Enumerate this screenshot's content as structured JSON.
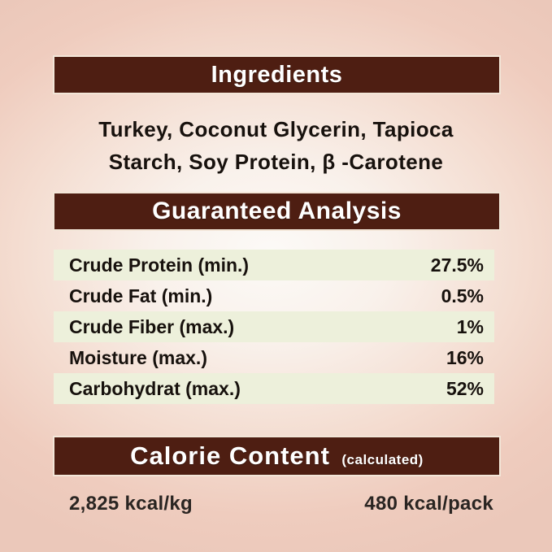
{
  "label": {
    "accent_color": "#4e1e12",
    "stripe_color": "#edf0db",
    "background_edge_color": "#ebc8ba"
  },
  "ingredients": {
    "title": "Ingredients",
    "line1": "Turkey, Coconut Glycerin, Tapioca",
    "line2": "Starch, Soy Protein, β -Carotene"
  },
  "guaranteed_analysis": {
    "title": "Guaranteed Analysis",
    "rows": [
      {
        "label": "Crude Protein (min.)",
        "value": "27.5%"
      },
      {
        "label": "Crude Fat (min.)",
        "value": "0.5%"
      },
      {
        "label": "Crude Fiber (max.)",
        "value": "1%"
      },
      {
        "label": "Moisture (max.)",
        "value": "16%"
      },
      {
        "label": "Carbohydrat (max.)",
        "value": "52%"
      }
    ]
  },
  "calorie_content": {
    "title": "Calorie Content",
    "qualifier": "(calculated)",
    "per_kg": "2,825 kcal/kg",
    "per_pack": "480 kcal/pack"
  }
}
